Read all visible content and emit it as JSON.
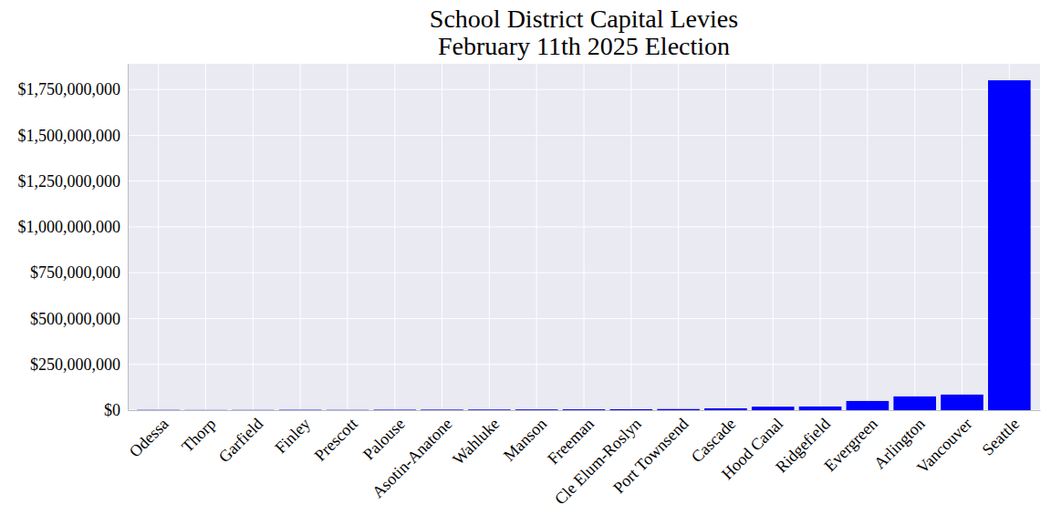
{
  "chart_data": {
    "type": "bar",
    "title": "School District Capital Levies\nFebruary 11th 2025 Election",
    "categories": [
      "Odessa",
      "Thorp",
      "Garfield",
      "Finley",
      "Prescott",
      "Palouse",
      "Asotin-Anatone",
      "Wahluke",
      "Manson",
      "Freeman",
      "Cle Elum-Roslyn",
      "Port Townsend",
      "Cascade",
      "Hood Canal",
      "Ridgefield",
      "Evergreen",
      "Arlington",
      "Vancouver",
      "Seattle"
    ],
    "values": [
      1500000,
      1000000,
      1200000,
      2000000,
      1500000,
      2500000,
      3000000,
      3500000,
      4000000,
      4500000,
      5000000,
      6000000,
      10000000,
      19000000,
      20000000,
      50000000,
      75000000,
      85000000,
      1800000000
    ],
    "color": "#0000ff",
    "ylim": [
      0,
      1890000000
    ],
    "yticks": [
      {
        "value": 0,
        "label": "$0"
      },
      {
        "value": 250000000,
        "label": "$250,000,000"
      },
      {
        "value": 500000000,
        "label": "$500,000,000"
      },
      {
        "value": 750000000,
        "label": "$750,000,000"
      },
      {
        "value": 1000000000,
        "label": "$1,000,000,000"
      },
      {
        "value": 1250000000,
        "label": "$1,250,000,000"
      },
      {
        "value": 1500000000,
        "label": "$1,500,000,000"
      },
      {
        "value": 1750000000,
        "label": "$1,750,000,000"
      }
    ],
    "grid": true
  }
}
